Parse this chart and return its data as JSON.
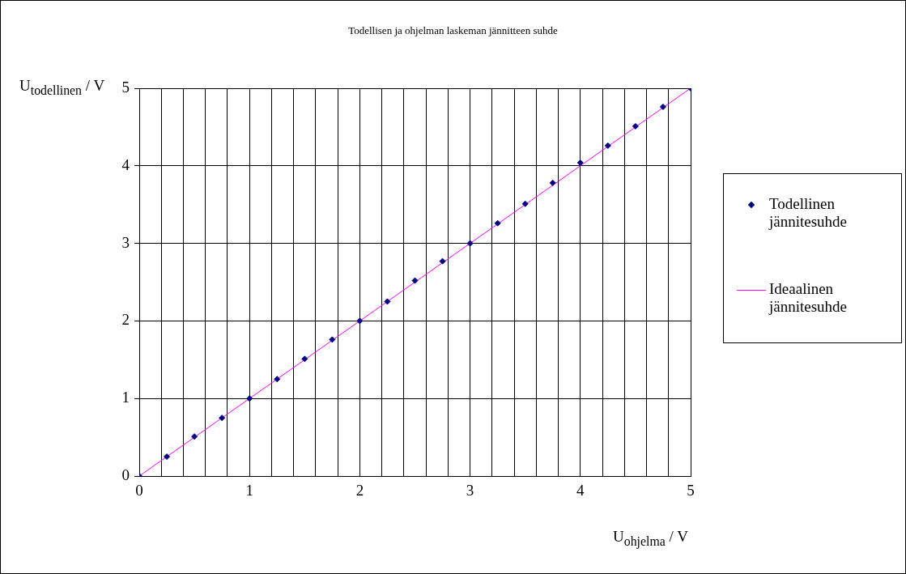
{
  "chart_data": {
    "type": "scatter",
    "title": "Todellisen ja ohjelman laskeman jännitteen suhde",
    "xlabel": "U$_{ohjelma}$ / V",
    "ylabel": "U$_{todellinen}$ / V",
    "xlim": [
      0,
      5
    ],
    "ylim": [
      0,
      5
    ],
    "xticks": [
      0,
      {
        "value": 0.2,
        "label": null
      },
      {
        "value": 0.4,
        "label": null
      },
      {
        "value": 0.6,
        "label": null
      },
      {
        "value": 0.8,
        "label": null
      },
      1,
      {
        "value": 1.2,
        "label": null
      },
      {
        "value": 1.4,
        "label": null
      },
      {
        "value": 1.6,
        "label": null
      },
      {
        "value": 1.8,
        "label": null
      },
      2,
      {
        "value": 2.2,
        "label": null
      },
      {
        "value": 2.4,
        "label": null
      },
      {
        "value": 2.6,
        "label": null
      },
      {
        "value": 2.8,
        "label": null
      },
      3,
      {
        "value": 3.2,
        "label": null
      },
      {
        "value": 3.4,
        "label": null
      },
      {
        "value": 3.6,
        "label": null
      },
      {
        "value": 3.8,
        "label": null
      },
      4,
      {
        "value": 4.2,
        "label": null
      },
      {
        "value": 4.4,
        "label": null
      },
      {
        "value": 4.6,
        "label": null
      },
      {
        "value": 4.8,
        "label": null
      },
      5
    ],
    "yticks": [
      0,
      1,
      2,
      3,
      4,
      5
    ],
    "grid": true,
    "legend": "right",
    "series": [
      {
        "name": "Todellinen jännitesuhde",
        "type": "scatter",
        "marker": "diamond",
        "color": "#000080",
        "x": [
          0,
          0.25,
          0.5,
          0.75,
          1,
          1.25,
          1.5,
          1.75,
          2,
          2.25,
          2.5,
          2.75,
          3,
          3.25,
          3.5,
          3.75,
          4,
          4.25,
          4.5,
          4.75,
          5
        ],
        "values": [
          0,
          0.25,
          0.51,
          0.75,
          1,
          1.25,
          1.51,
          1.76,
          2,
          2.25,
          2.52,
          2.77,
          3,
          3.26,
          3.51,
          3.78,
          4.04,
          4.26,
          4.51,
          4.76,
          5
        ]
      },
      {
        "name": "Ideaalinen jännitesuhde",
        "type": "line",
        "marker": "none",
        "color": "#ff00ff",
        "x": [
          0,
          5
        ],
        "values": [
          0,
          5
        ]
      }
    ]
  }
}
